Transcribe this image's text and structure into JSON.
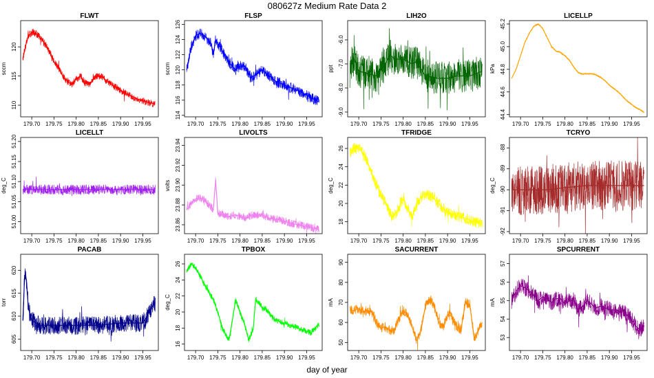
{
  "figure": {
    "title": "080627z   Medium Rate Data 2",
    "xlabel": "day of year"
  },
  "chart_data": [
    {
      "type": "line",
      "title": "FLWT",
      "ylabel": "sccm",
      "color": "#ff0000",
      "xlim": [
        179.675,
        179.985
      ],
      "ylim": [
        108,
        124.5
      ],
      "xticks": [
        "179.70",
        "179.75",
        "179.80",
        "179.85",
        "179.90",
        "179.95"
      ],
      "yticks": [
        110,
        115,
        120
      ],
      "x": [
        179.68,
        179.69,
        179.7,
        179.71,
        179.72,
        179.735,
        179.75,
        179.76,
        179.775,
        179.79,
        179.8,
        179.81,
        179.82,
        179.83,
        179.845,
        179.86,
        179.87,
        179.88,
        179.9,
        179.92,
        179.94,
        179.96,
        179.978
      ],
      "y": [
        118,
        121.5,
        122.5,
        122.3,
        121.5,
        120,
        117.5,
        116.3,
        114.5,
        113.5,
        114.5,
        115,
        113.8,
        113.5,
        115,
        114.8,
        114,
        113.5,
        112.5,
        111.7,
        111,
        110.5,
        110.2
      ],
      "noise": 1.2
    },
    {
      "type": "line",
      "title": "FLSP",
      "ylabel": "sccm",
      "color": "#0000ff",
      "xlim": [
        179.675,
        179.985
      ],
      "ylim": [
        113.8,
        126.5
      ],
      "xticks": [
        "179.70",
        "179.75",
        "179.80",
        "179.85",
        "179.90",
        "179.95"
      ],
      "yticks": [
        114,
        116,
        118,
        120,
        122,
        124,
        126
      ],
      "x": [
        179.68,
        179.69,
        179.7,
        179.71,
        179.72,
        179.735,
        179.74,
        179.745,
        179.76,
        179.775,
        179.79,
        179.8,
        179.81,
        179.825,
        179.84,
        179.85,
        179.86,
        179.88,
        179.9,
        179.92,
        179.94,
        179.96,
        179.978
      ],
      "y": [
        120,
        123,
        124.5,
        124.8,
        124.5,
        123.5,
        122,
        124,
        122.5,
        121,
        120,
        120.5,
        120.5,
        119,
        119.5,
        120,
        119.5,
        118.5,
        118,
        117.5,
        117,
        116.3,
        115.8
      ],
      "noise": 1.4
    },
    {
      "type": "line",
      "title": "LIH2O",
      "ylabel": "ppt",
      "color": "#006400",
      "xlim": [
        179.675,
        179.985
      ],
      "ylim": [
        -9.2,
        -5.2
      ],
      "xticks": [
        "179.70",
        "179.75",
        "179.80",
        "179.85",
        "179.90",
        "179.95"
      ],
      "yticks": [
        -9,
        -8,
        -7,
        -6
      ],
      "x": [
        179.68,
        179.69,
        179.7,
        179.72,
        179.74,
        179.76,
        179.77,
        179.78,
        179.8,
        179.82,
        179.83,
        179.85,
        179.88,
        179.9,
        179.92,
        179.95,
        179.978
      ],
      "y": [
        -7,
        -6.8,
        -7.3,
        -7.4,
        -7.5,
        -7,
        -6.6,
        -6.8,
        -6.8,
        -7,
        -6.9,
        -7.5,
        -7.6,
        -7.6,
        -7.5,
        -7.5,
        -7.3
      ],
      "noise": 1.4
    },
    {
      "type": "line",
      "title": "LICELLP",
      "ylabel": "kPa",
      "color": "#ffa500",
      "xlim": [
        179.675,
        179.985
      ],
      "ylim": [
        44.38,
        45.23
      ],
      "xticks": [
        "179.70",
        "179.75",
        "179.80",
        "179.85",
        "179.90",
        "179.95"
      ],
      "yticks": [
        44.4,
        44.6,
        44.8,
        45.0,
        45.2
      ],
      "x": [
        179.68,
        179.69,
        179.7,
        179.71,
        179.72,
        179.73,
        179.74,
        179.75,
        179.76,
        179.77,
        179.78,
        179.79,
        179.8,
        179.81,
        179.82,
        179.83,
        179.84,
        179.85,
        179.86,
        179.87,
        179.88,
        179.89,
        179.9,
        179.91,
        179.92,
        179.93,
        179.94,
        179.95,
        179.96,
        179.97,
        179.978
      ],
      "y": [
        44.72,
        44.8,
        44.92,
        45.04,
        45.12,
        45.18,
        45.2,
        45.16,
        45.08,
        45.0,
        44.96,
        44.95,
        44.92,
        44.88,
        44.82,
        44.77,
        44.76,
        44.76,
        44.76,
        44.75,
        44.73,
        44.7,
        44.66,
        44.63,
        44.6,
        44.56,
        44.52,
        44.49,
        44.46,
        44.44,
        44.42
      ],
      "noise": 0.012
    },
    {
      "type": "line",
      "title": "LICELLT",
      "ylabel": "deg_C",
      "color": "#a020f0",
      "xlim": [
        179.675,
        179.985
      ],
      "ylim": [
        50.97,
        51.21
      ],
      "xticks": [
        "179.70",
        "179.75",
        "179.80",
        "179.85",
        "179.90",
        "179.95"
      ],
      "yticks": [
        51.0,
        51.05,
        51.1,
        51.15,
        51.2
      ],
      "x": [
        179.68,
        179.7,
        179.72,
        179.74,
        179.76,
        179.8,
        179.85,
        179.9,
        179.95,
        179.978
      ],
      "y": [
        51.08,
        51.08,
        51.08,
        51.08,
        51.08,
        51.08,
        51.08,
        51.08,
        51.08,
        51.08
      ],
      "noise": 0.025
    },
    {
      "type": "line",
      "title": "LIVOLTS",
      "ylabel": "volts",
      "color": "#ee82ee",
      "xlim": [
        179.675,
        179.985
      ],
      "ylim": [
        23.851,
        23.948
      ],
      "xticks": [
        "179.70",
        "179.75",
        "179.80",
        "179.85",
        "179.90",
        "179.95"
      ],
      "yticks": [
        23.86,
        23.88,
        23.9,
        23.92,
        23.94
      ],
      "x": [
        179.68,
        179.69,
        179.7,
        179.71,
        179.72,
        179.73,
        179.74,
        179.745,
        179.75,
        179.77,
        179.79,
        179.81,
        179.83,
        179.85,
        179.87,
        179.89,
        179.91,
        179.93,
        179.95,
        179.97,
        179.978
      ],
      "y": [
        23.875,
        23.882,
        23.886,
        23.887,
        23.885,
        23.88,
        23.875,
        23.905,
        23.872,
        23.868,
        23.87,
        23.867,
        23.87,
        23.87,
        23.866,
        23.865,
        23.862,
        23.86,
        23.858,
        23.856,
        23.855
      ],
      "noise": 0.008
    },
    {
      "type": "line",
      "title": "TFRIDGE",
      "ylabel": "deg_C",
      "color": "#ffff00",
      "xlim": [
        179.675,
        179.985
      ],
      "ylim": [
        16.7,
        27.2
      ],
      "xticks": [
        "179.70",
        "179.75",
        "179.80",
        "179.85",
        "179.90",
        "179.95"
      ],
      "yticks": [
        18,
        20,
        22,
        24,
        26
      ],
      "x": [
        179.68,
        179.69,
        179.7,
        179.71,
        179.72,
        179.735,
        179.745,
        179.76,
        179.775,
        179.785,
        179.8,
        179.81,
        179.82,
        179.83,
        179.845,
        179.855,
        179.87,
        179.89,
        179.9,
        179.92,
        179.94,
        179.96,
        179.978
      ],
      "y": [
        25.5,
        26,
        26,
        25.5,
        24.5,
        22.5,
        21.5,
        20,
        18.5,
        19,
        20.5,
        19.5,
        18.5,
        20,
        21,
        21,
        20.5,
        19.5,
        19,
        18.6,
        18.4,
        18,
        17.8
      ],
      "noise": 1.2
    },
    {
      "type": "line",
      "title": "TCRYO",
      "ylabel": "deg_C",
      "color": "#a52a2a",
      "xlim": [
        179.675,
        179.985
      ],
      "ylim": [
        -92.1,
        -87.5
      ],
      "xticks": [
        "179.70",
        "179.75",
        "179.80",
        "179.85",
        "179.90",
        "179.95"
      ],
      "yticks": [
        -92,
        -91,
        -90,
        -89,
        -88
      ],
      "x": [
        179.68,
        179.7,
        179.72,
        179.74,
        179.75,
        179.76,
        179.8,
        179.85,
        179.9,
        179.95,
        179.978
      ],
      "y": [
        -90,
        -90,
        -90,
        -90,
        -90,
        -90,
        -89.9,
        -89.8,
        -89.8,
        -89.8,
        -89.8
      ],
      "noise": 2.4
    },
    {
      "type": "line",
      "title": "PACAB",
      "ylabel": "torr",
      "color": "#00008b",
      "xlim": [
        179.675,
        179.985
      ],
      "ylim": [
        602.5,
        623.5
      ],
      "xticks": [
        "179.70",
        "179.75",
        "179.80",
        "179.85",
        "179.90",
        "179.95"
      ],
      "yticks": [
        605,
        610,
        615,
        620
      ],
      "x": [
        179.68,
        179.684,
        179.688,
        179.692,
        179.7,
        179.71,
        179.72,
        179.74,
        179.76,
        179.8,
        179.85,
        179.9,
        179.95,
        179.96,
        179.97,
        179.978
      ],
      "y": [
        609,
        619,
        618,
        612,
        609,
        608.5,
        608,
        608,
        608,
        608,
        608,
        608.5,
        608.5,
        610,
        612,
        613
      ],
      "noise": 4
    },
    {
      "type": "line",
      "title": "TPBOX",
      "ylabel": "deg_C",
      "color": "#00ff00",
      "xlim": [
        179.675,
        179.985
      ],
      "ylim": [
        15.2,
        27.2
      ],
      "xticks": [
        "179.70",
        "179.75",
        "179.80",
        "179.85",
        "179.90",
        "179.95"
      ],
      "yticks": [
        16,
        18,
        20,
        22,
        24,
        26
      ],
      "x": [
        179.68,
        179.69,
        179.7,
        179.71,
        179.72,
        179.73,
        179.74,
        179.75,
        179.76,
        179.775,
        179.78,
        179.79,
        179.8,
        179.81,
        179.82,
        179.83,
        179.835,
        179.845,
        179.85,
        179.86,
        179.87,
        179.88,
        179.9,
        179.92,
        179.94,
        179.96,
        179.978
      ],
      "y": [
        25,
        26,
        25.5,
        24.5,
        23.5,
        22.5,
        21.5,
        20,
        18,
        16.5,
        18,
        21.5,
        20,
        18.5,
        16.5,
        18,
        21.5,
        21,
        20.5,
        20.3,
        19.5,
        19,
        18.6,
        18.2,
        17.8,
        17.4,
        18.5
      ],
      "noise": 0.7
    },
    {
      "type": "line",
      "title": "SACURRENT",
      "ylabel": "mA",
      "color": "#ff8c00",
      "xlim": [
        179.675,
        179.985
      ],
      "ylim": [
        46,
        94
      ],
      "xticks": [
        "179.70",
        "179.75",
        "179.80",
        "179.85",
        "179.90",
        "179.95"
      ],
      "yticks": [
        50,
        60,
        70,
        80,
        90
      ],
      "x": [
        179.68,
        179.69,
        179.7,
        179.71,
        179.72,
        179.73,
        179.74,
        179.75,
        179.76,
        179.77,
        179.78,
        179.79,
        179.8,
        179.81,
        179.82,
        179.83,
        179.84,
        179.85,
        179.86,
        179.87,
        179.88,
        179.89,
        179.9,
        179.91,
        179.92,
        179.93,
        179.94,
        179.95,
        179.96,
        179.97,
        179.978
      ],
      "y": [
        66,
        66,
        67,
        65,
        66,
        65,
        60,
        57,
        58,
        56,
        56,
        62,
        66,
        64,
        58,
        51,
        56,
        68,
        72,
        68,
        60,
        58,
        64,
        63,
        58,
        56,
        70,
        69,
        52,
        56,
        60
      ],
      "noise": 5
    },
    {
      "type": "line",
      "title": "SPCURRENT",
      "ylabel": "mA",
      "color": "#8b008b",
      "xlim": [
        179.675,
        179.985
      ],
      "ylim": [
        52.3,
        57.5
      ],
      "xticks": [
        "179.70",
        "179.75",
        "179.80",
        "179.85",
        "179.90",
        "179.95"
      ],
      "yticks": [
        53,
        54,
        55,
        56,
        57
      ],
      "x": [
        179.68,
        179.69,
        179.7,
        179.71,
        179.72,
        179.73,
        179.74,
        179.75,
        179.76,
        179.77,
        179.78,
        179.79,
        179.8,
        179.81,
        179.82,
        179.83,
        179.84,
        179.85,
        179.86,
        179.87,
        179.88,
        179.89,
        179.9,
        179.91,
        179.92,
        179.93,
        179.94,
        179.95,
        179.96,
        179.97,
        179.978
      ],
      "y": [
        55,
        55.5,
        55.8,
        55.7,
        55.5,
        55.3,
        55,
        55.2,
        55.1,
        54.9,
        55.1,
        55.1,
        54.8,
        55,
        55,
        54.5,
        54.7,
        55,
        54.8,
        54.6,
        54.7,
        54.6,
        54.5,
        54.5,
        54.3,
        54.5,
        54.2,
        54,
        53.6,
        53.4,
        53.8
      ],
      "noise": 0.9
    }
  ]
}
